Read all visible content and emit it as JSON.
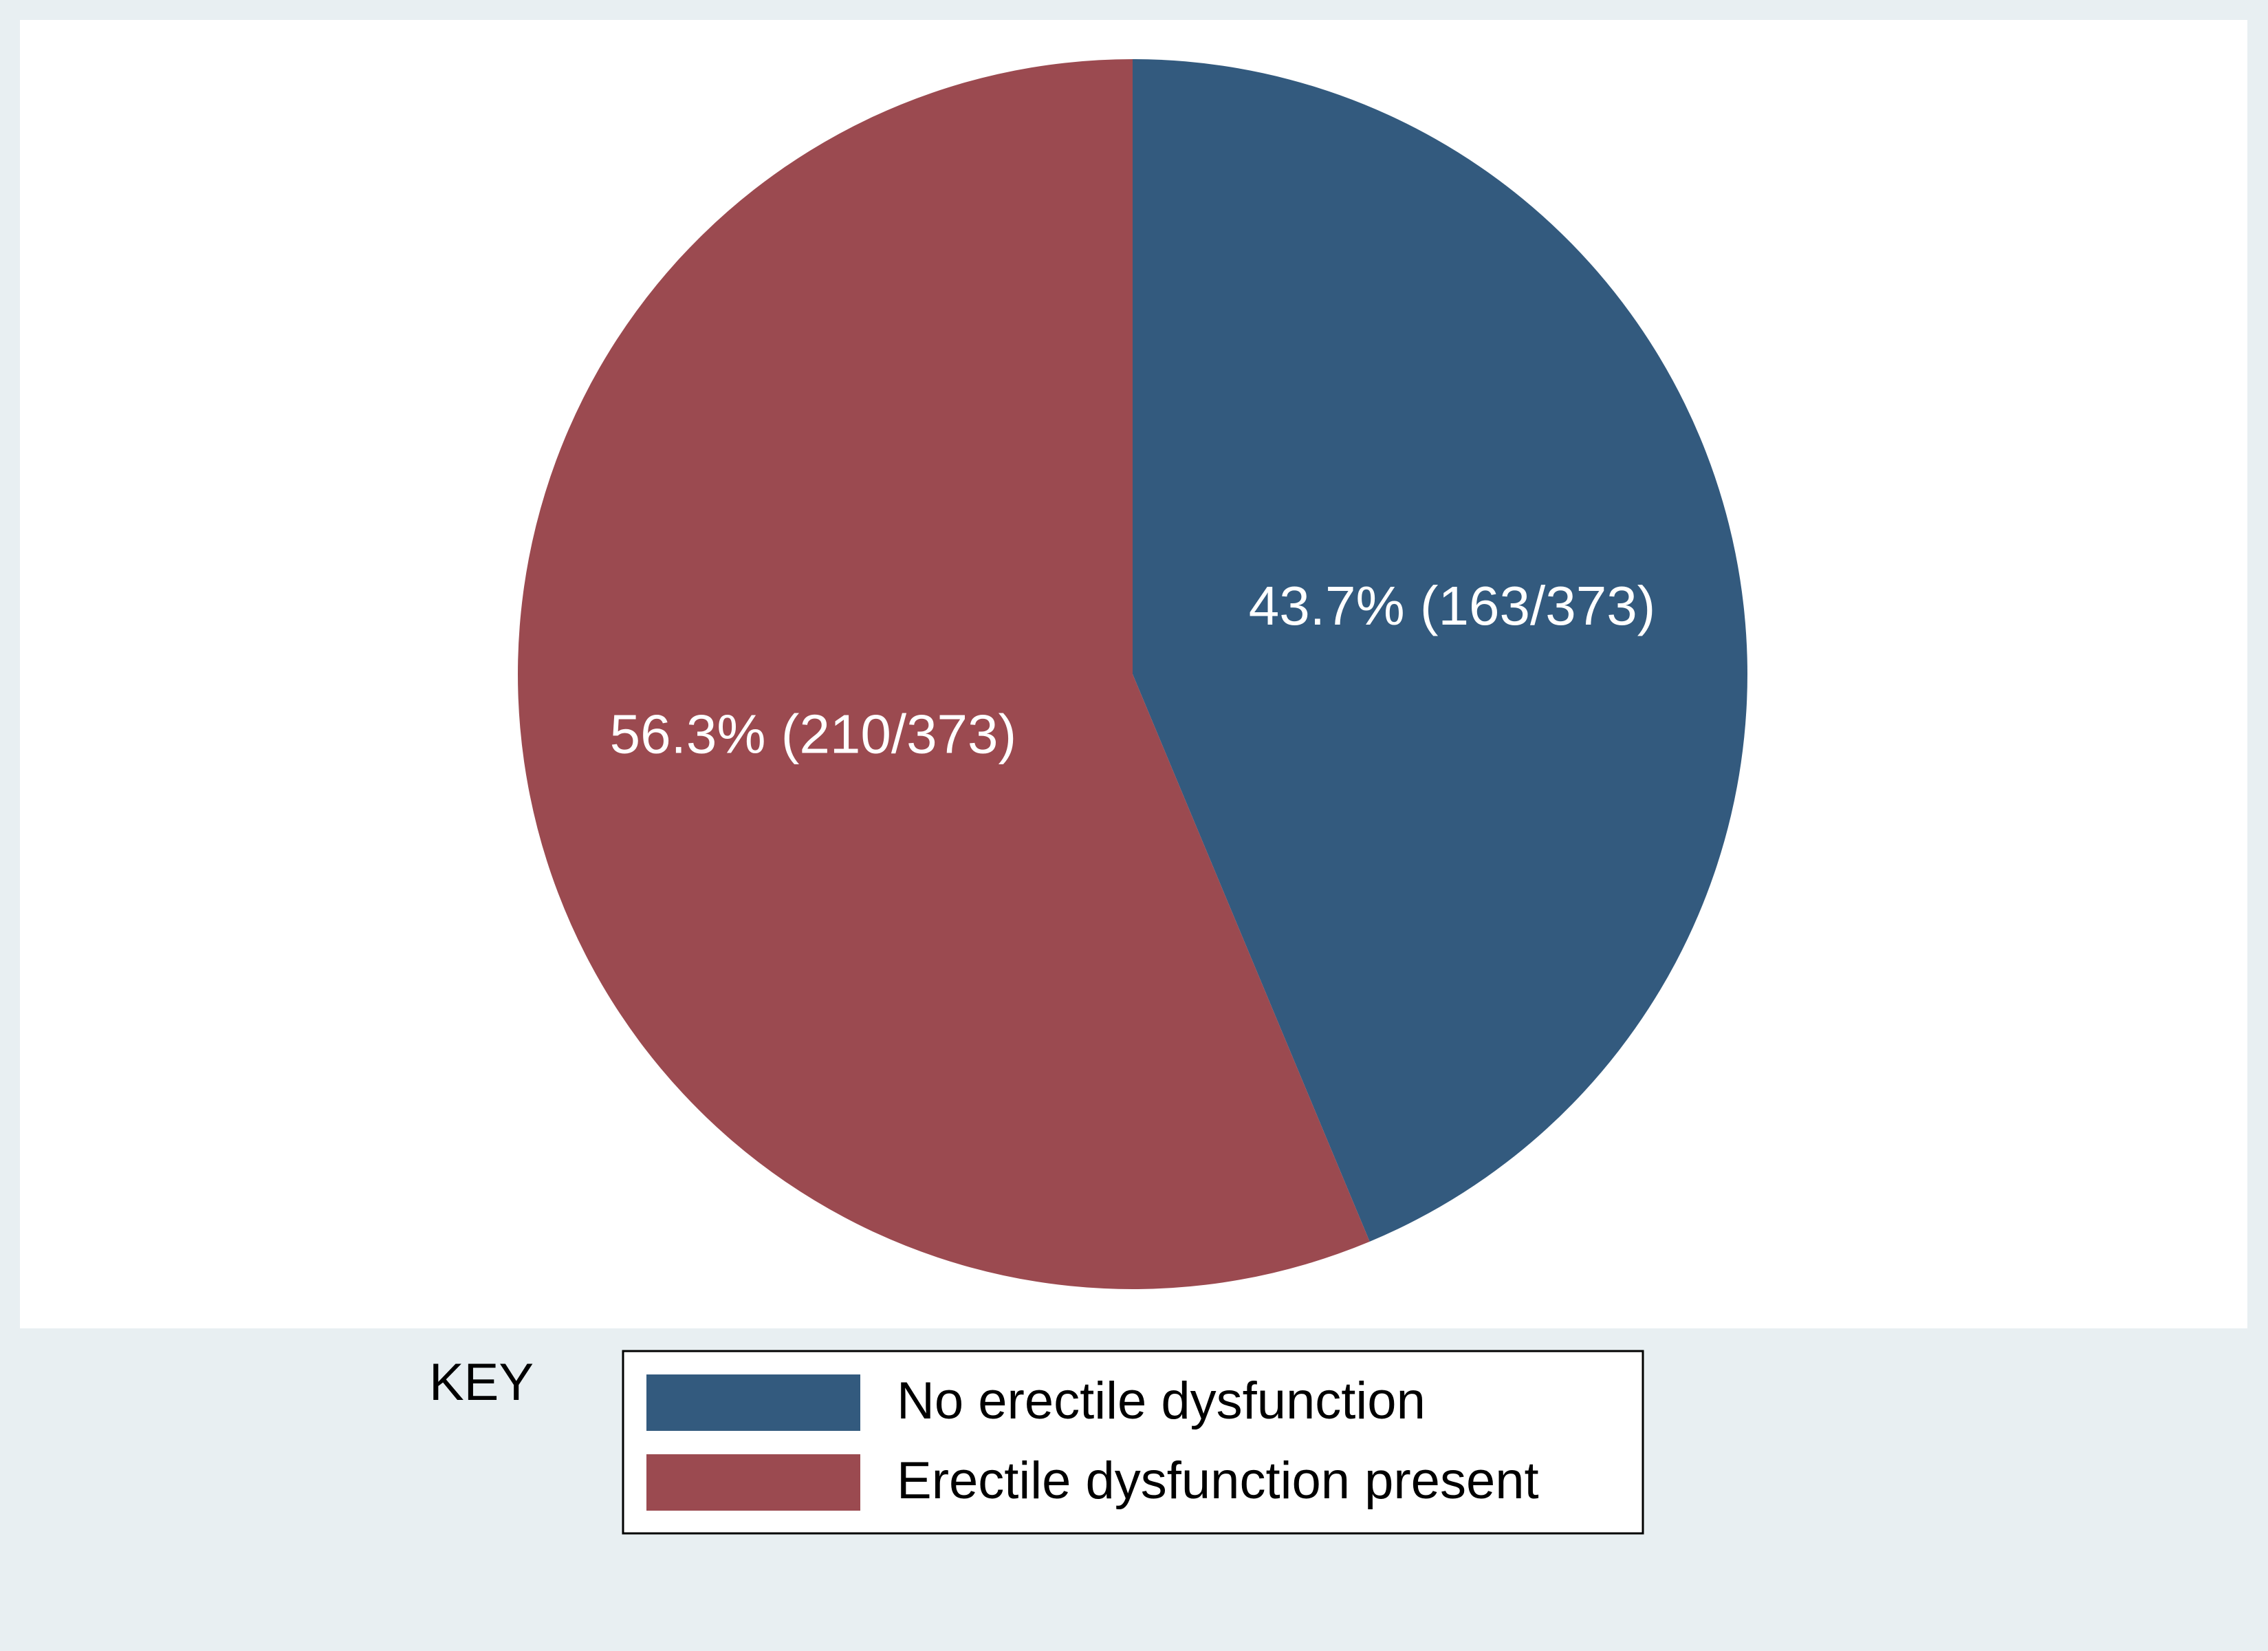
{
  "chart_data": {
    "type": "pie",
    "categories": [
      "No erectile dysfunction",
      "Erectile dysfunction present"
    ],
    "values": [
      43.7,
      56.3
    ],
    "value_labels": [
      "43.7% (163/373)",
      "56.3% (210/373)"
    ],
    "colors": [
      "#335a7e",
      "#9b4a50"
    ],
    "legend_title": "KEY",
    "legend_position": "bottom"
  }
}
